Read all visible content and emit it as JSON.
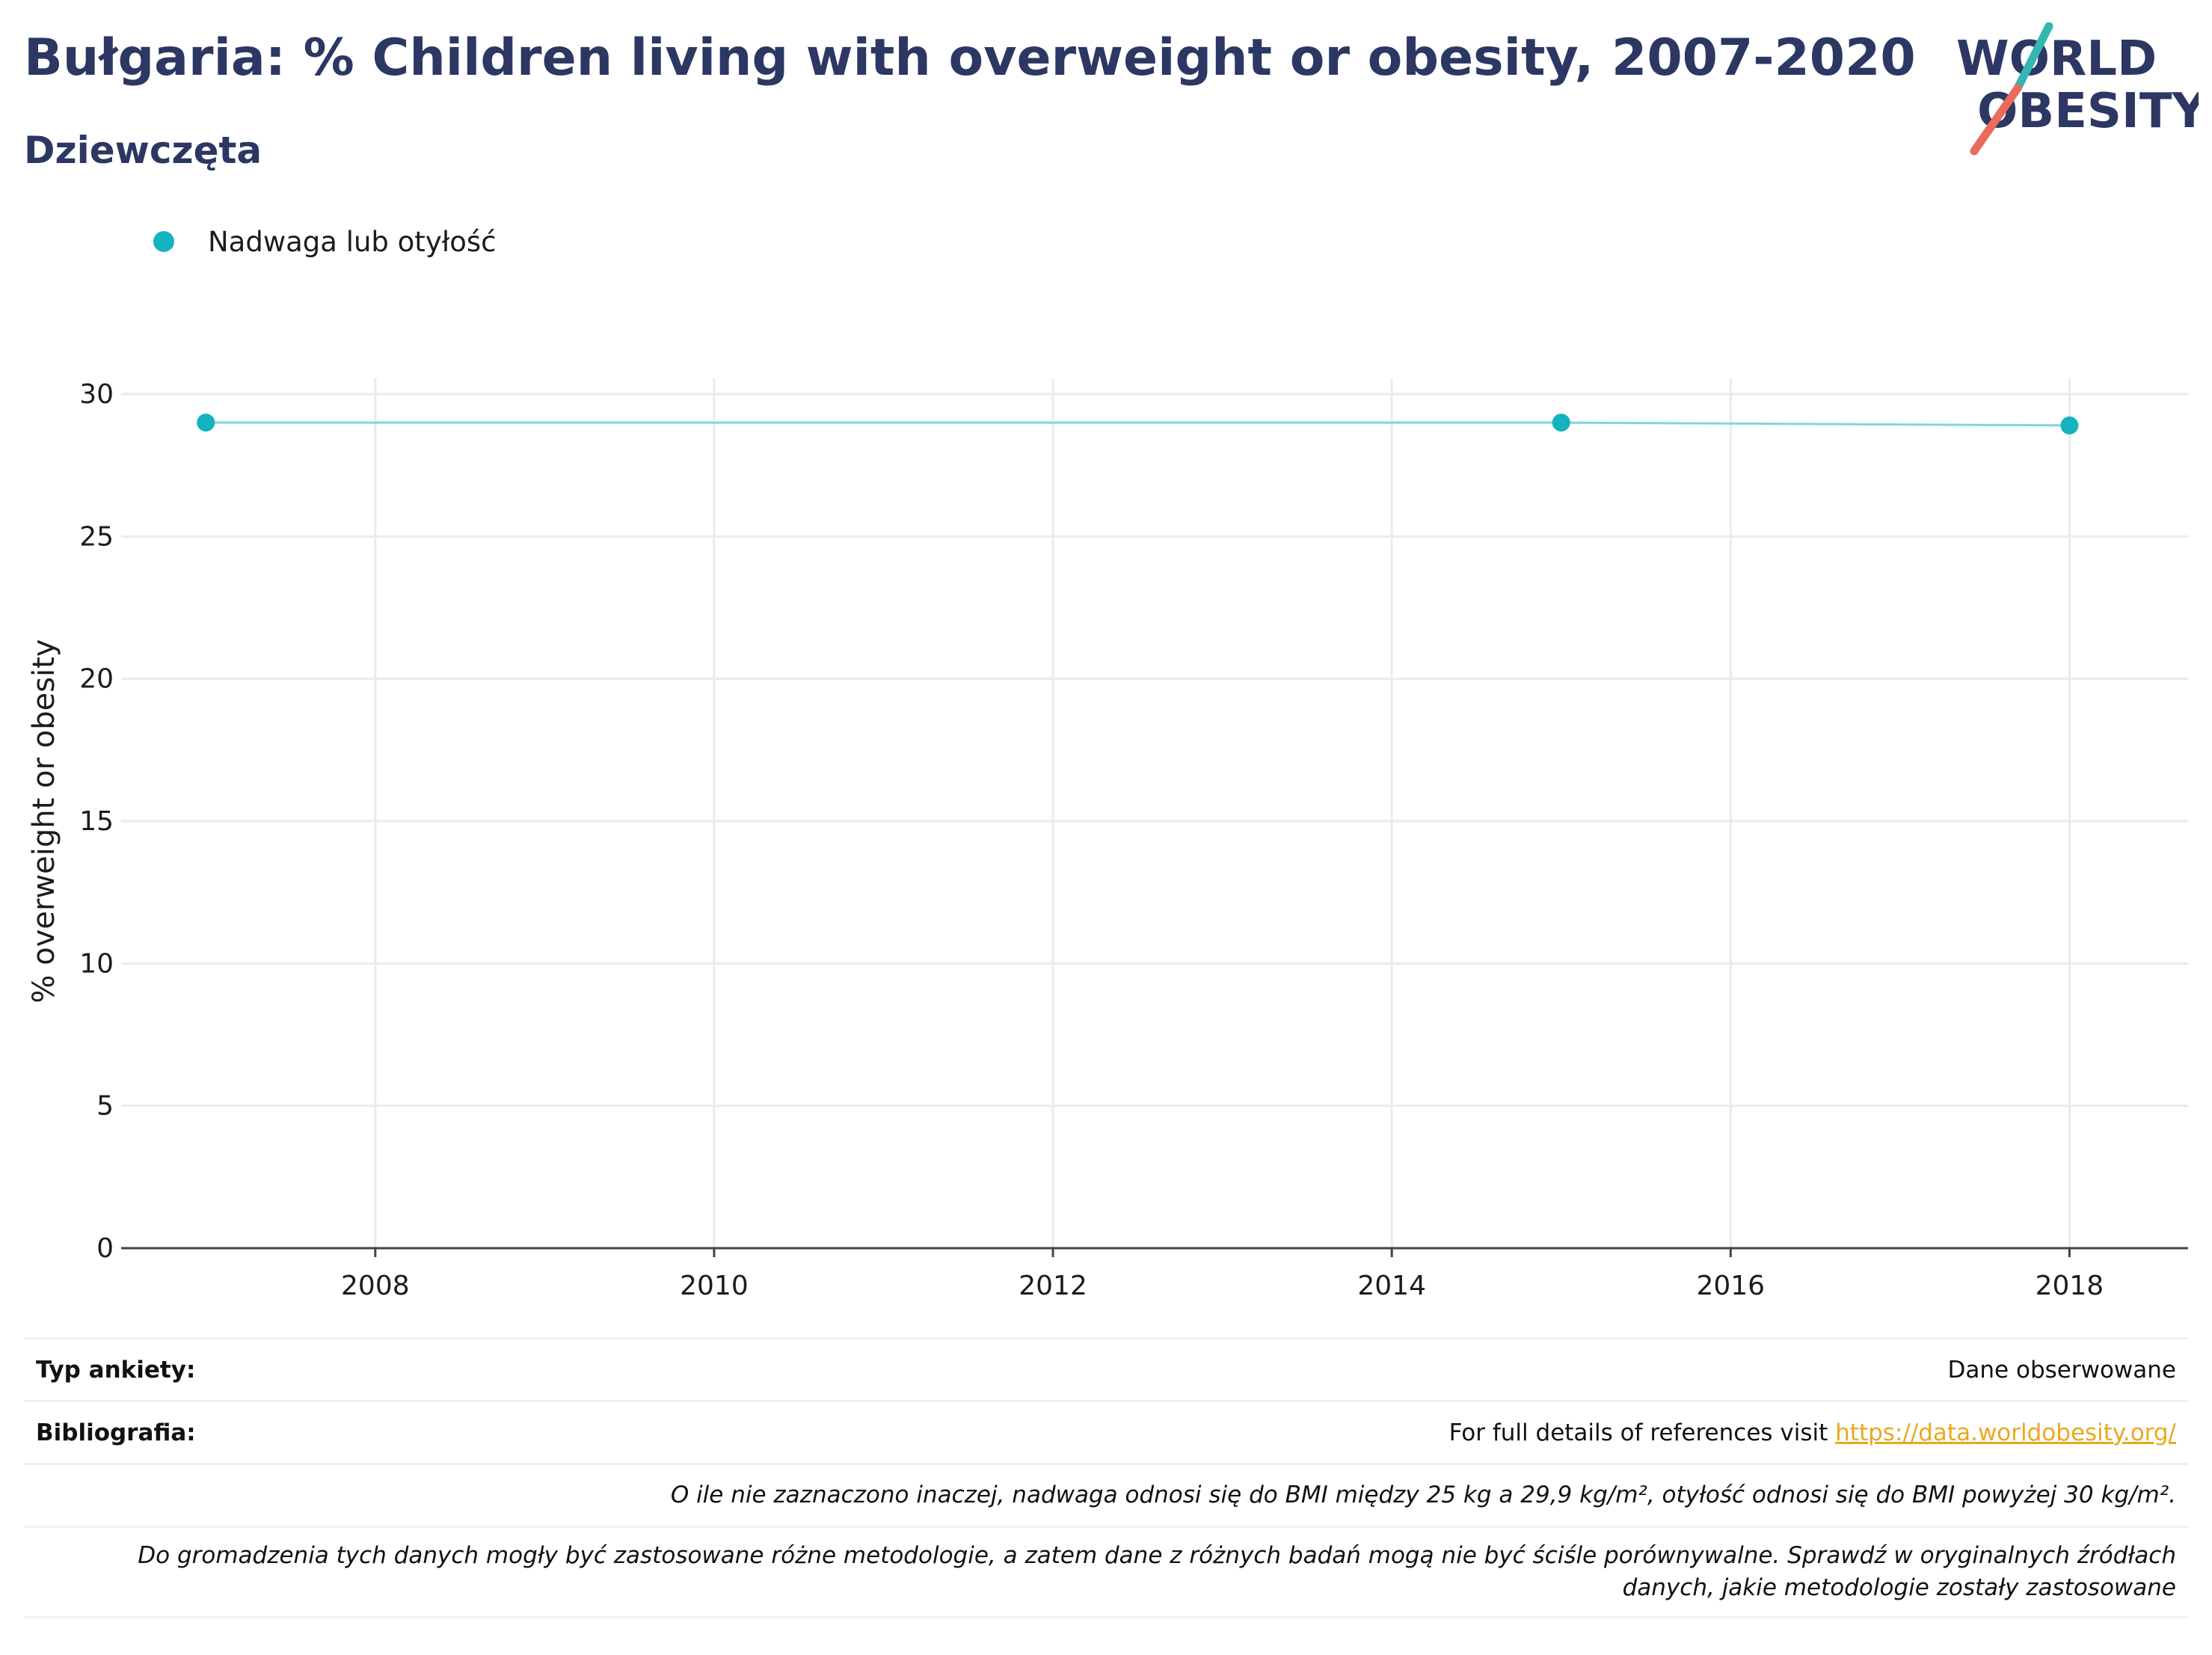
{
  "header": {
    "title": "Bułgaria: % Children living with overweight or obesity, 2007-2020",
    "subtitle": "Dziewczęta"
  },
  "logo": {
    "line1": "WORLD",
    "line2": "OBESITY"
  },
  "colors": {
    "series": "#14b3bf",
    "line": "#7fd6dc",
    "title": "#2c3763",
    "logo_teal": "#34b6b1",
    "logo_red": "#ea6a5c",
    "link": "#e8a91f"
  },
  "chart_data": {
    "type": "line",
    "x": [
      2007,
      2015,
      2018
    ],
    "series": [
      {
        "name": "Nadwaga lub otyłość",
        "values": [
          29.0,
          29.0,
          28.9
        ]
      }
    ],
    "ylabel": "% overweight or obesity",
    "xlabel": "",
    "xlim": [
      2006.5,
      2018.7
    ],
    "ylim": [
      0,
      30
    ],
    "x_ticks": [
      2008,
      2010,
      2012,
      2014,
      2016,
      2018
    ],
    "y_ticks": [
      0,
      5,
      10,
      15,
      20,
      25,
      30
    ],
    "grid": true,
    "legend": "top-left"
  },
  "footer": {
    "survey_label": "Typ ankiety:",
    "survey_value": "Dane obserwowane",
    "biblio_label": "Bibliografia:",
    "biblio_text": "For full details of references visit ",
    "biblio_link": "https://data.worldobesity.org/",
    "note1": "O ile nie zaznaczono inaczej, nadwaga odnosi się do BMI między 25 kg a 29,9 kg/m², otyłość odnosi się do BMI powyżej 30 kg/m².",
    "note2_line1": "Do gromadzenia tych danych mogły być zastosowane różne metodologie, a zatem dane z różnych badań mogą nie być ściśle porównywalne. Sprawdź w oryginalnych źródłach",
    "note2_line2": "danych, jakie metodologie zostały zastosowane"
  }
}
